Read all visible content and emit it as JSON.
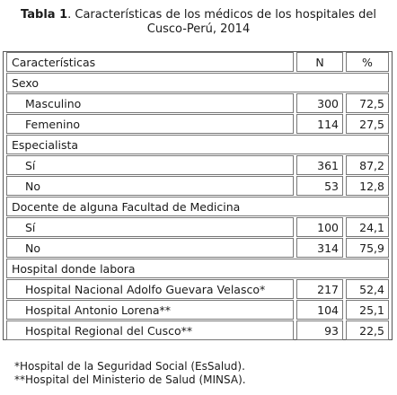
{
  "caption": {
    "prefix": "Tabla 1",
    "rest_line1": ". Características de los médicos de los hospitales del",
    "line2": "Cusco-Perú, 2014"
  },
  "header": {
    "col1": "Características",
    "col2": "N",
    "col3": "%"
  },
  "rows": [
    {
      "type": "section",
      "label": "Sexo"
    },
    {
      "type": "item",
      "label": "Masculino",
      "n": "300",
      "pct": "72,5"
    },
    {
      "type": "item",
      "label": "Femenino",
      "n": "114",
      "pct": "27,5"
    },
    {
      "type": "section",
      "label": "Especialista"
    },
    {
      "type": "item",
      "label": "Sí",
      "n": "361",
      "pct": "87,2"
    },
    {
      "type": "item",
      "label": "No",
      "n": "53",
      "pct": "12,8"
    },
    {
      "type": "section",
      "label": "Docente de alguna Facultad de Medicina"
    },
    {
      "type": "item",
      "label": "Sí",
      "n": "100",
      "pct": "24,1"
    },
    {
      "type": "item",
      "label": "No",
      "n": "314",
      "pct": "75,9"
    },
    {
      "type": "section",
      "label": "Hospital donde labora"
    },
    {
      "type": "item",
      "label": "Hospital Nacional Adolfo Guevara Velasco*",
      "n": "217",
      "pct": "52,4"
    },
    {
      "type": "item",
      "label": "Hospital Antonio Lorena**",
      "n": "104",
      "pct": "25,1"
    },
    {
      "type": "item",
      "label": "Hospital Regional del Cusco**",
      "n": "93",
      "pct": "22,5"
    }
  ],
  "footnotes": [
    "*Hospital de la Seguridad Social (EsSalud).",
    "**Hospital del Ministerio de Salud (MINSA)."
  ]
}
